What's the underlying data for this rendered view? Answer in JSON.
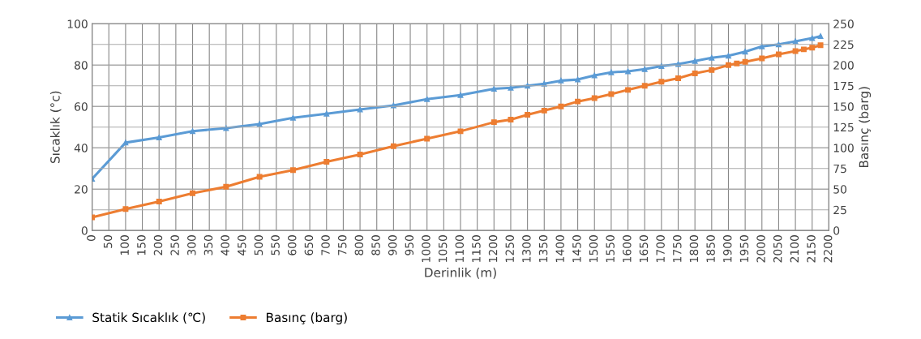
{
  "chart_data": {
    "type": "line",
    "xlabel": "Derinlik (m)",
    "ylabel": "Sıcaklık (°c)",
    "y2label": "Basınç (barg)",
    "xlim": [
      0,
      2200
    ],
    "xticks": [
      0,
      50,
      100,
      150,
      200,
      250,
      300,
      350,
      400,
      450,
      500,
      550,
      600,
      650,
      700,
      750,
      800,
      850,
      900,
      950,
      1000,
      1050,
      1100,
      1150,
      1200,
      1250,
      1300,
      1350,
      1400,
      1450,
      1500,
      1550,
      1600,
      1650,
      1700,
      1750,
      1800,
      1850,
      1900,
      1950,
      2000,
      2050,
      2100,
      2150,
      2200
    ],
    "ylim": [
      0,
      100
    ],
    "yticks": [
      0,
      20,
      40,
      60,
      80,
      100
    ],
    "y2lim": [
      0,
      250
    ],
    "y2ticks": [
      0,
      25,
      50,
      75,
      100,
      125,
      150,
      175,
      200,
      225,
      250
    ],
    "grid": true,
    "legend": "bottom",
    "line_style": "solid",
    "series": [
      {
        "name": "Statik Sıcaklık (℃)",
        "color": "#5b9bd5",
        "marker": "triangle",
        "x": [
          0,
          100,
          200,
          300,
          400,
          500,
          600,
          700,
          800,
          900,
          1000,
          1100,
          1200,
          1250,
          1300,
          1350,
          1400,
          1450,
          1500,
          1550,
          1600,
          1650,
          1700,
          1750,
          1800,
          1850,
          1900,
          1950,
          2000,
          2050,
          2100,
          2150,
          2175
        ],
        "values": [
          25,
          42.5,
          45,
          48,
          49.5,
          51.5,
          54.5,
          56.5,
          58.5,
          60.5,
          63.5,
          65.5,
          68.5,
          69,
          70,
          71,
          72.5,
          73,
          75,
          76.5,
          77,
          78,
          79.5,
          80.5,
          82,
          83.5,
          84.5,
          86.5,
          89,
          90,
          91.5,
          93,
          94
        ]
      },
      {
        "name": "Basınç (barg)",
        "color": "#ed7d31",
        "marker": "square",
        "axis": "y2",
        "x": [
          0,
          100,
          200,
          300,
          400,
          500,
          600,
          700,
          800,
          900,
          1000,
          1100,
          1200,
          1250,
          1300,
          1350,
          1400,
          1450,
          1500,
          1550,
          1600,
          1650,
          1700,
          1750,
          1800,
          1850,
          1900,
          1925,
          1950,
          2000,
          2050,
          2100,
          2125,
          2150,
          2175
        ],
        "values": [
          16,
          26,
          35,
          45,
          53,
          65,
          73,
          83,
          92,
          102,
          111,
          120,
          131,
          134,
          140,
          145,
          150,
          156,
          160,
          165,
          170,
          175,
          180,
          184,
          190,
          194,
          200,
          202,
          204,
          208,
          213,
          217,
          219,
          221,
          224
        ]
      }
    ]
  }
}
